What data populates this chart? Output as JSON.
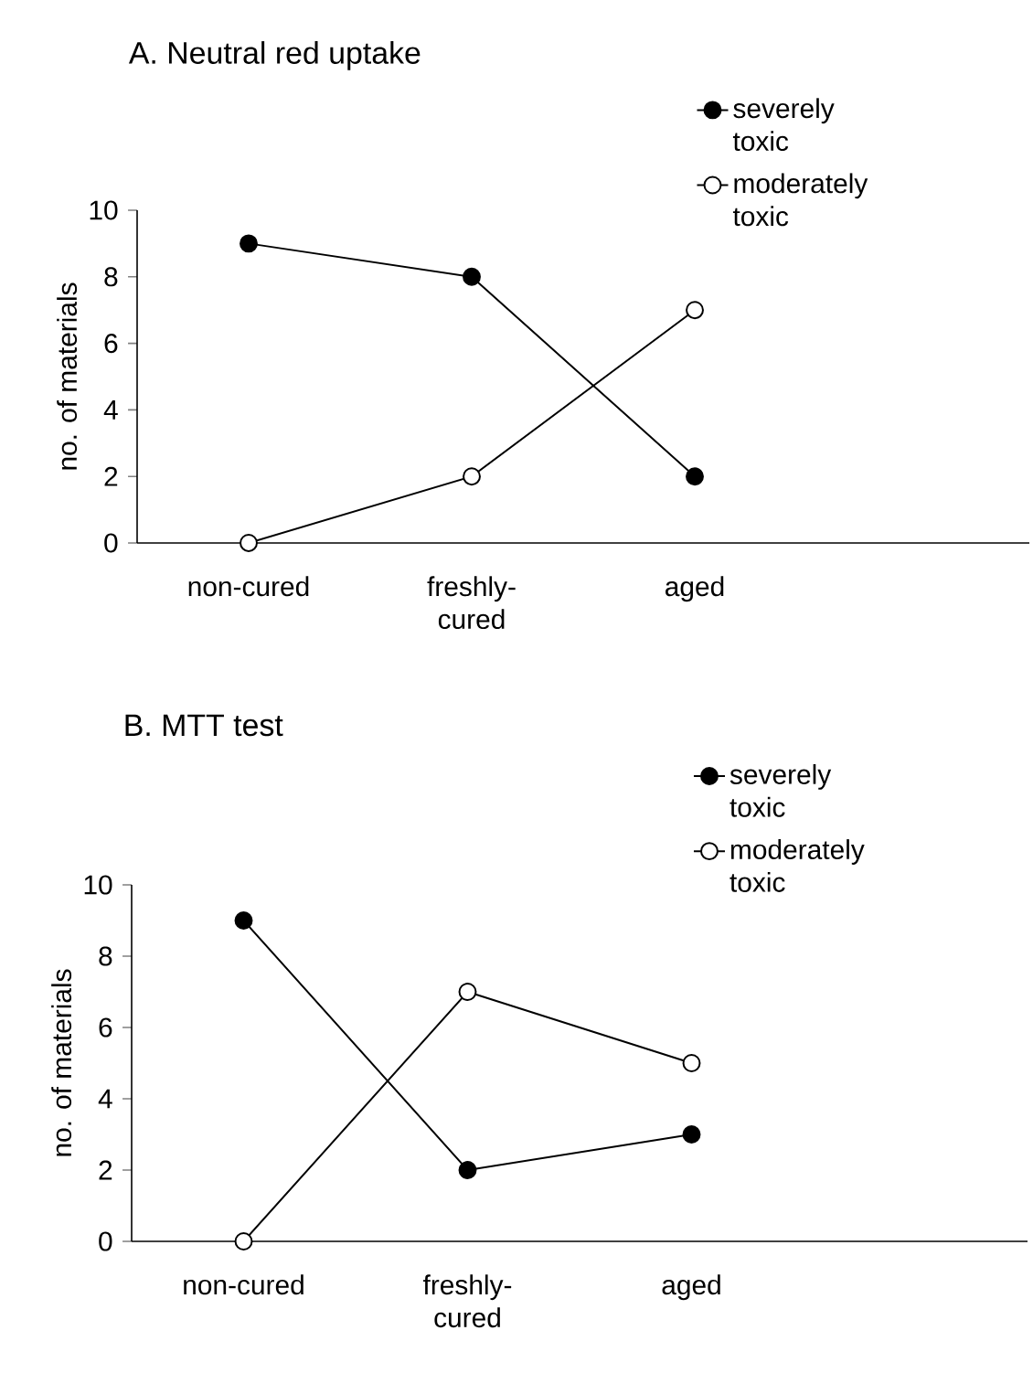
{
  "chart_data": [
    {
      "type": "line",
      "title": "A. Neutral red uptake",
      "ylabel": "no. of materials",
      "categories": [
        "non-cured",
        "freshly-cured",
        "aged"
      ],
      "series": [
        {
          "name": "severely toxic",
          "color": "#000000",
          "values": [
            9,
            8,
            2
          ]
        },
        {
          "name": "moderately toxic",
          "color": "#000000",
          "values": [
            0,
            2,
            7
          ]
        }
      ],
      "ylim": [
        0,
        10
      ],
      "yticks": [
        0,
        2,
        4,
        6,
        8,
        10
      ],
      "marker": "circle",
      "legend": "top right",
      "grid": false
    },
    {
      "type": "line",
      "title": "B. MTT test",
      "ylabel": "no. of materials",
      "categories": [
        "non-cured",
        "freshly-cured",
        "aged"
      ],
      "series": [
        {
          "name": "severely toxic",
          "color": "#000000",
          "values": [
            9,
            2,
            3
          ]
        },
        {
          "name": "moderately toxic",
          "color": "#000000",
          "values": [
            0,
            7,
            5
          ]
        }
      ],
      "ylim": [
        0,
        10
      ],
      "yticks": [
        0,
        2,
        4,
        6,
        8,
        10
      ],
      "marker": "circle",
      "legend": "top right",
      "grid": false
    }
  ]
}
